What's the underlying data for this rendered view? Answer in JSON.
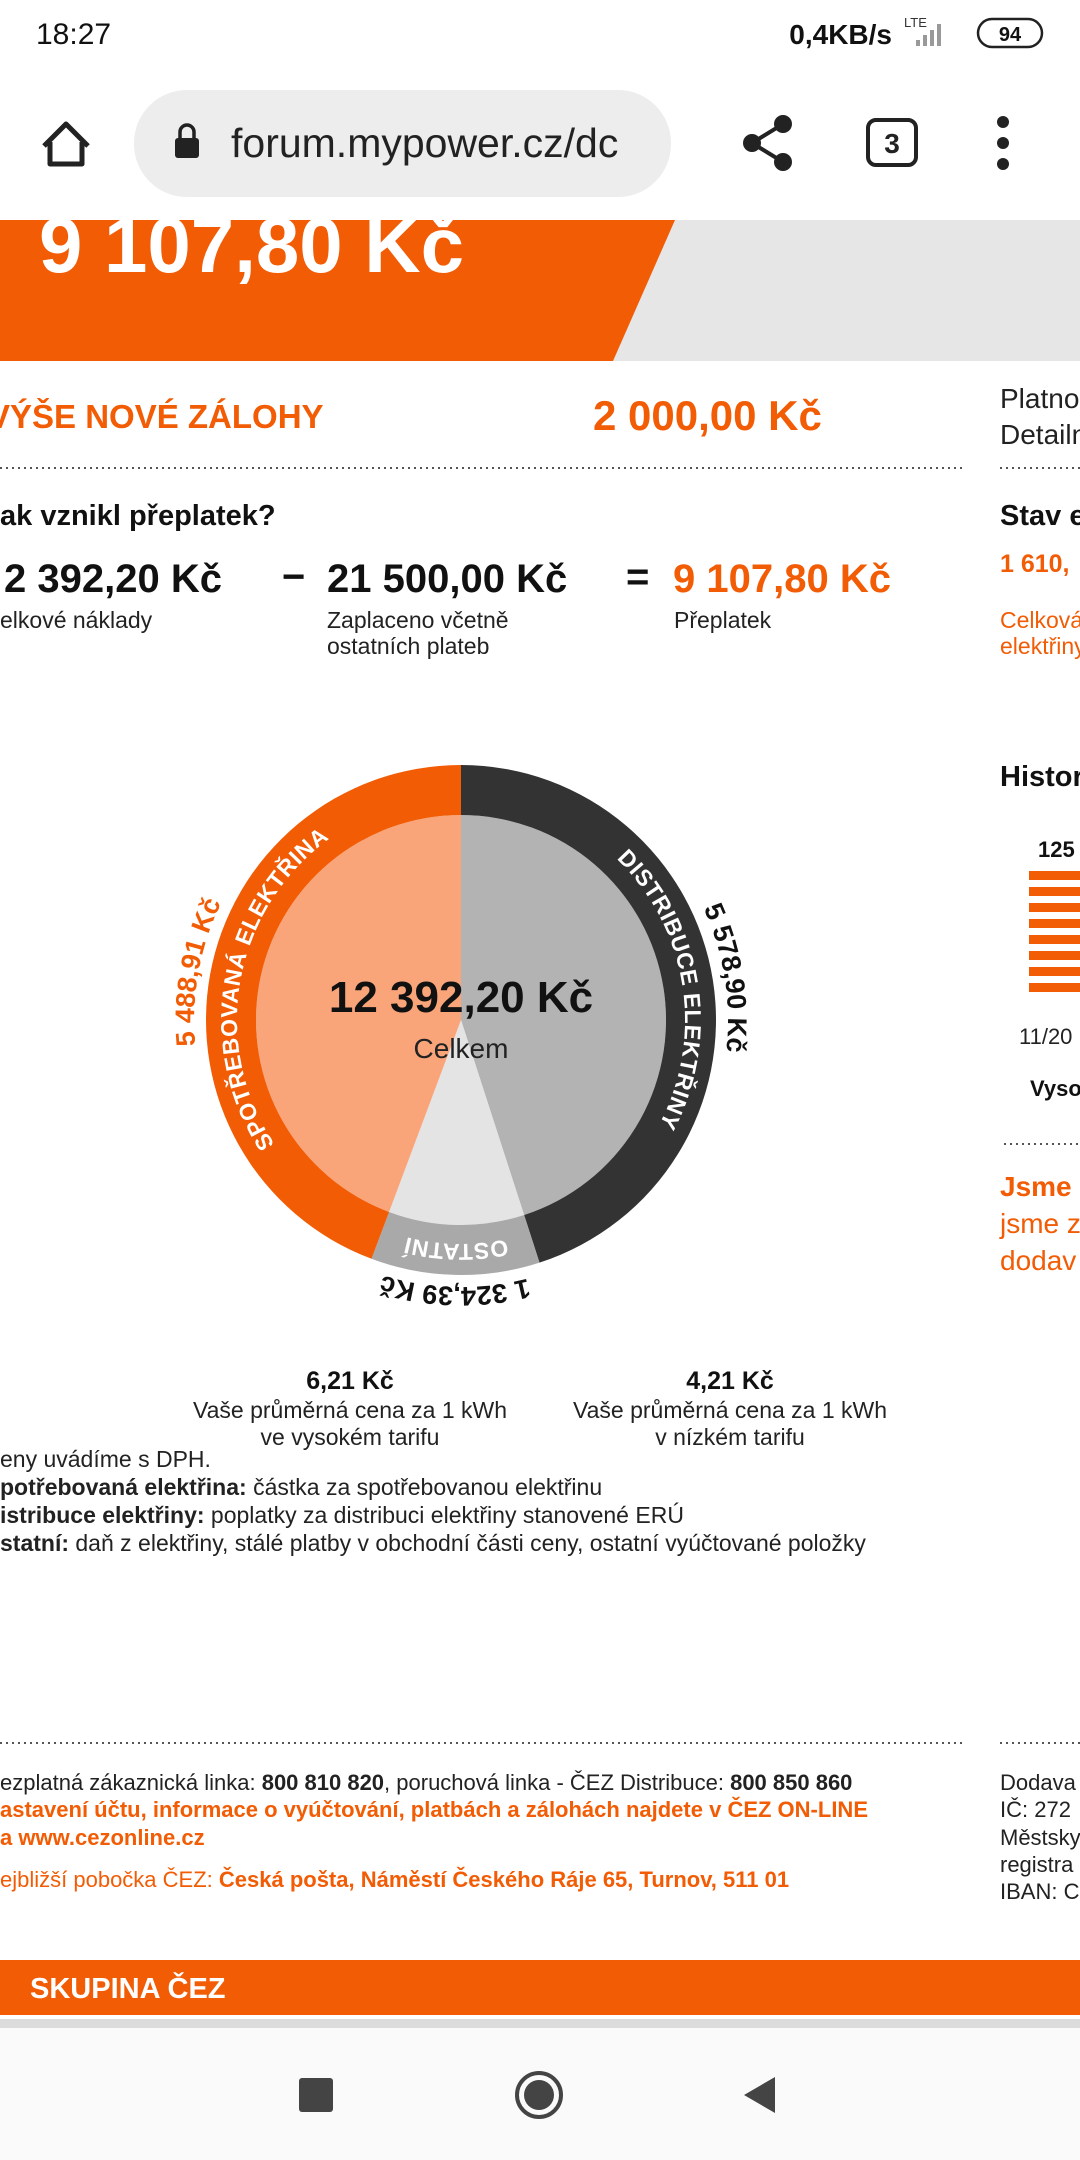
{
  "status_bar": {
    "time": "18:27",
    "speed": "0,4KB/s",
    "network": "LTE",
    "battery": "94"
  },
  "browser": {
    "url": "forum.mypower.cz/dc",
    "tabs": "3"
  },
  "banner": {
    "amount": "9 107,80 Kč"
  },
  "deposit": {
    "label": "VÝŠE NOVÉ ZÁLOHY",
    "value": "2 000,00 Kč"
  },
  "overpayment": {
    "question": "ak vznikl přeplatek?",
    "costs": "2 392,20 Kč",
    "minus": "−",
    "paid": "21 500,00 Kč",
    "equals": "=",
    "result": "9 107,80 Kč",
    "costs_caption": "elkové náklady",
    "paid_caption": [
      "Zaplaceno včetně",
      "ostatních plateb"
    ],
    "result_caption": "Přeplatek"
  },
  "side": {
    "lines": [
      "Platno",
      "Detailn"
    ],
    "state_title": "Stav e",
    "state_value": "1 610,",
    "state_caption": [
      "Celková",
      "elektřiny"
    ],
    "history_title": "Histor",
    "history_value": "125",
    "history_date": "11/20",
    "history_legend": "Vyso",
    "promo": [
      "Jsme",
      "jsme z",
      "dodav"
    ]
  },
  "chart_data": {
    "type": "pie",
    "title": "12 392,20 Kč",
    "subtitle": "Celkem",
    "categories": [
      "DISTRIBUCE ELEKTŘINY",
      "OSTATNÍ",
      "SPOTŘEBOVANÁ ELEKTŘINA"
    ],
    "values": [
      5578.9,
      1324.39,
      5488.91
    ],
    "value_labels": [
      "5 578,90 Kč",
      "1 324,39 Kč",
      "5 488,91 Kč"
    ],
    "colors": [
      "#333333",
      "#a9a9a9",
      "#f25c05"
    ],
    "fill_colors": [
      "#b3b3b3",
      "#e4e4e4",
      "#faa47a"
    ],
    "label_colors": [
      "#111111",
      "#111111",
      "#f25c05"
    ]
  },
  "prices": [
    {
      "value": "6,21 Kč",
      "lines": [
        "Vaše průměrná cena za 1 kWh",
        "ve vysokém tarifu"
      ]
    },
    {
      "value": "4,21 Kč",
      "lines": [
        "Vaše průměrná cena za 1 kWh",
        "v nízkém tarifu"
      ]
    }
  ],
  "notes": {
    "vat": "eny uvádíme s DPH.",
    "items": [
      [
        "potřebovaná elektřina:",
        " částka za spotřebovanou elektřinu"
      ],
      [
        "istribuce elektřiny:",
        " poplatky za distribuci elektřiny stanovené ERÚ"
      ],
      [
        "statní:",
        " daň z elektřiny, stálé platby v obchodní části ceny, ostatní vyúčtované položky"
      ]
    ]
  },
  "footer": {
    "hotline": [
      "ezplatná zákaznická linka: ",
      "800 810 820",
      ", poruchová linka - ČEZ Distribuce: ",
      "800 850 860"
    ],
    "online": [
      "astavení účtu, informace o vyúčtování, platbách a zálohách najdete v ČEZ ON-LINE",
      "a www.cezonline.cz"
    ],
    "branch": [
      "ejbližší pobočka ČEZ: ",
      "Česká pošta, Náměstí Českého Ráje 65, Turnov, 511 01"
    ],
    "company": [
      "Dodava",
      "IČ: 272",
      "Městsky",
      "registra",
      "IBAN: C"
    ],
    "brand": "SKUPINA ČEZ"
  }
}
